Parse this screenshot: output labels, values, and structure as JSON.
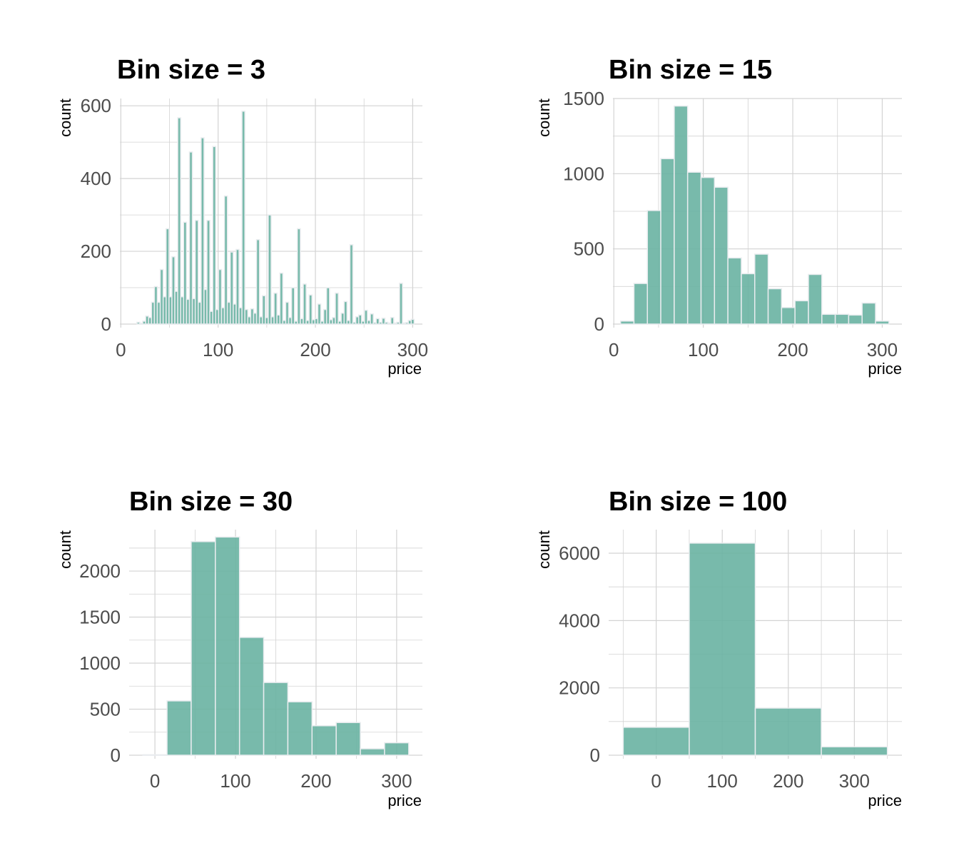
{
  "style": {
    "bar_fill": "#69b3a2",
    "bar_stroke": "#e9ecef",
    "grid_color": "#d3d3d3",
    "tick_color": "#4d4d4d"
  },
  "chart_data": [
    {
      "type": "bar",
      "title": "Bin size = 3",
      "xlabel": "price",
      "ylabel": "count",
      "binwidth": 3,
      "xlim": [
        -1,
        310
      ],
      "ylim": [
        0,
        620
      ],
      "xticks": [
        0,
        100,
        200,
        300
      ],
      "yticks": [
        0,
        200,
        400,
        600
      ],
      "grid": true,
      "bins": [
        [
          18,
          5
        ],
        [
          21,
          2
        ],
        [
          24,
          8
        ],
        [
          27,
          22
        ],
        [
          30,
          18
        ],
        [
          33,
          60
        ],
        [
          36,
          103
        ],
        [
          39,
          60
        ],
        [
          42,
          150
        ],
        [
          45,
          75
        ],
        [
          48,
          262
        ],
        [
          51,
          75
        ],
        [
          54,
          185
        ],
        [
          57,
          90
        ],
        [
          60,
          567
        ],
        [
          63,
          75
        ],
        [
          66,
          280
        ],
        [
          69,
          68
        ],
        [
          72,
          473
        ],
        [
          75,
          70
        ],
        [
          78,
          285
        ],
        [
          81,
          60
        ],
        [
          84,
          512
        ],
        [
          87,
          95
        ],
        [
          90,
          285
        ],
        [
          93,
          35
        ],
        [
          96,
          488
        ],
        [
          99,
          40
        ],
        [
          102,
          150
        ],
        [
          105,
          45
        ],
        [
          108,
          352
        ],
        [
          111,
          60
        ],
        [
          114,
          198
        ],
        [
          117,
          55
        ],
        [
          120,
          205
        ],
        [
          123,
          45
        ],
        [
          126,
          585
        ],
        [
          129,
          40
        ],
        [
          132,
          20
        ],
        [
          135,
          42
        ],
        [
          138,
          30
        ],
        [
          141,
          232
        ],
        [
          144,
          20
        ],
        [
          147,
          78
        ],
        [
          150,
          18
        ],
        [
          153,
          300
        ],
        [
          156,
          20
        ],
        [
          159,
          85
        ],
        [
          162,
          25
        ],
        [
          165,
          140
        ],
        [
          168,
          10
        ],
        [
          171,
          60
        ],
        [
          174,
          18
        ],
        [
          177,
          100
        ],
        [
          180,
          8
        ],
        [
          183,
          262
        ],
        [
          186,
          15
        ],
        [
          189,
          110
        ],
        [
          192,
          10
        ],
        [
          195,
          80
        ],
        [
          198,
          12
        ],
        [
          201,
          15
        ],
        [
          204,
          55
        ],
        [
          207,
          8
        ],
        [
          210,
          40
        ],
        [
          213,
          100
        ],
        [
          216,
          12
        ],
        [
          219,
          18
        ],
        [
          222,
          85
        ],
        [
          225,
          8
        ],
        [
          228,
          30
        ],
        [
          231,
          62
        ],
        [
          234,
          10
        ],
        [
          237,
          218
        ],
        [
          240,
          5
        ],
        [
          243,
          20
        ],
        [
          246,
          25
        ],
        [
          249,
          8
        ],
        [
          252,
          38
        ],
        [
          255,
          10
        ],
        [
          258,
          28
        ],
        [
          261,
          4
        ],
        [
          264,
          15
        ],
        [
          267,
          5
        ],
        [
          270,
          16
        ],
        [
          273,
          5
        ],
        [
          276,
          3
        ],
        [
          279,
          18
        ],
        [
          282,
          3
        ],
        [
          285,
          5
        ],
        [
          288,
          112
        ],
        [
          291,
          3
        ],
        [
          294,
          4
        ],
        [
          297,
          10
        ],
        [
          300,
          13
        ]
      ]
    },
    {
      "type": "bar",
      "title": "Bin size = 15",
      "xlabel": "price",
      "ylabel": "count",
      "binwidth": 15,
      "xlim": [
        -1,
        322
      ],
      "ylim": [
        0,
        1500
      ],
      "xticks": [
        0,
        100,
        200,
        300
      ],
      "yticks": [
        0,
        500,
        1000,
        1500
      ],
      "grid": true,
      "bins": [
        [
          15,
          20
        ],
        [
          30,
          270
        ],
        [
          45,
          755
        ],
        [
          60,
          1100
        ],
        [
          75,
          1450
        ],
        [
          90,
          1010
        ],
        [
          105,
          975
        ],
        [
          120,
          910
        ],
        [
          135,
          440
        ],
        [
          150,
          335
        ],
        [
          165,
          465
        ],
        [
          180,
          235
        ],
        [
          195,
          110
        ],
        [
          210,
          155
        ],
        [
          225,
          330
        ],
        [
          240,
          65
        ],
        [
          255,
          65
        ],
        [
          270,
          60
        ],
        [
          285,
          140
        ],
        [
          300,
          20
        ]
      ]
    },
    {
      "type": "bar",
      "title": "Bin size = 30",
      "xlabel": "price",
      "ylabel": "count",
      "binwidth": 30,
      "xlim": [
        -32,
        332
      ],
      "ylim": [
        0,
        2450
      ],
      "xticks": [
        0,
        100,
        200,
        300
      ],
      "yticks": [
        0,
        500,
        1000,
        1500,
        2000
      ],
      "grid": true,
      "bins": [
        [
          0,
          5
        ],
        [
          30,
          590
        ],
        [
          60,
          2320
        ],
        [
          90,
          2370
        ],
        [
          120,
          1280
        ],
        [
          150,
          790
        ],
        [
          180,
          580
        ],
        [
          210,
          320
        ],
        [
          240,
          355
        ],
        [
          270,
          70
        ],
        [
          300,
          135
        ]
      ]
    },
    {
      "type": "bar",
      "title": "Bin size = 100",
      "xlabel": "price",
      "ylabel": "count",
      "binwidth": 100,
      "xlim": [
        -72,
        372
      ],
      "ylim": [
        0,
        6700
      ],
      "xticks": [
        0,
        100,
        200,
        300
      ],
      "yticks": [
        0,
        2000,
        4000,
        6000
      ],
      "grid": true,
      "bins": [
        [
          0,
          830
        ],
        [
          100,
          6300
        ],
        [
          200,
          1400
        ],
        [
          300,
          250
        ]
      ]
    }
  ]
}
